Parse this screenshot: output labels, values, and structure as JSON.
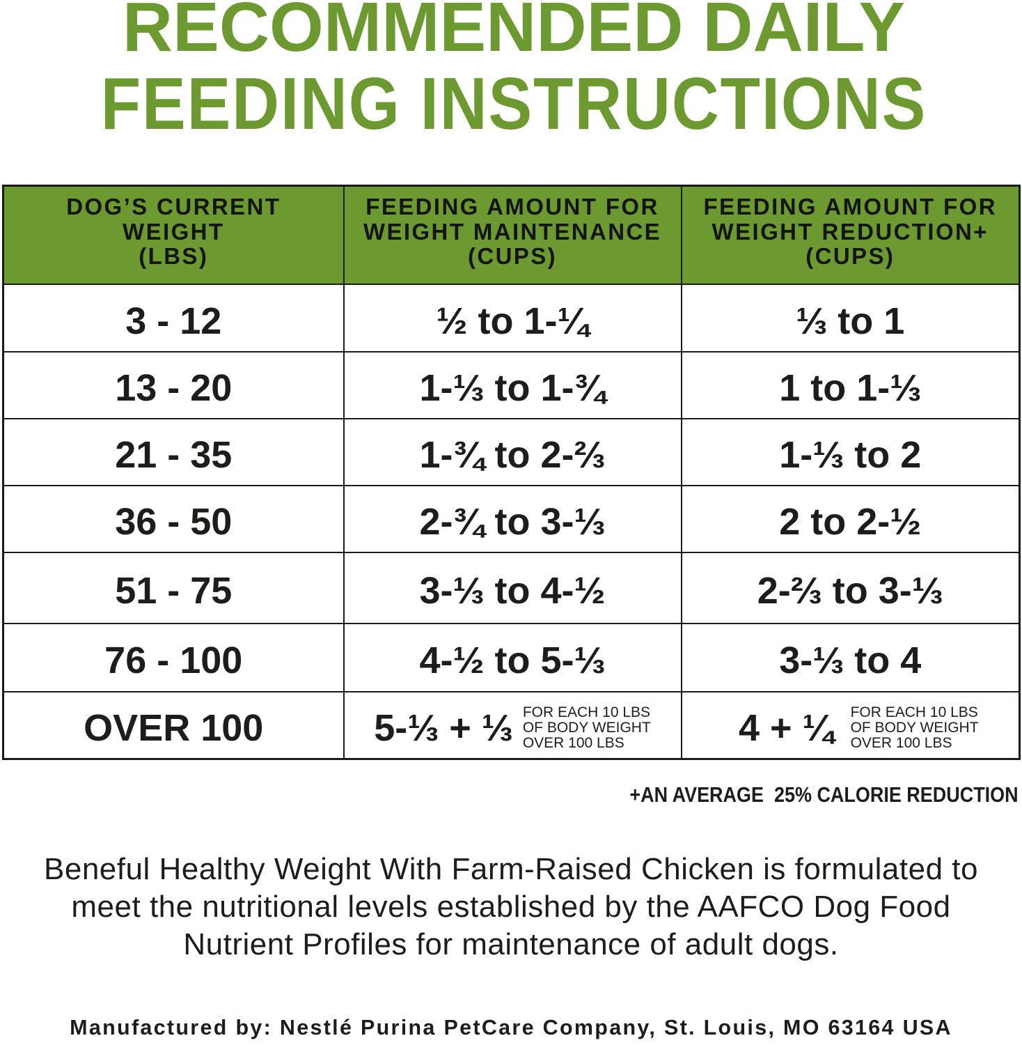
{
  "title": {
    "lines": [
      "RECOMMENDED DAILY",
      "FEEDING INSTRUCTIONS"
    ]
  },
  "colors": {
    "green": "#6c9a31",
    "text": "#1d1d1b",
    "border": "#1a1a1a"
  },
  "table": {
    "headers": [
      "DOG’S CURRENT\nWEIGHT\n(LBS)",
      "FEEDING AMOUNT FOR\nWEIGHT MAINTENANCE\n(CUPS)",
      "FEEDING AMOUNT FOR\nWEIGHT REDUCTION+\n(CUPS)"
    ],
    "rows": [
      {
        "weight": "3 - 12",
        "maintenance": "½ to 1-¼",
        "reduction": "⅓ to 1"
      },
      {
        "weight": "13 - 20",
        "maintenance": "1-⅓ to 1-¾",
        "reduction": "1 to 1-⅓"
      },
      {
        "weight": "21 - 35",
        "maintenance": "1-¾ to 2-⅔",
        "reduction": "1-⅓ to 2"
      },
      {
        "weight": "36 - 50",
        "maintenance": "2-¾ to 3-⅓",
        "reduction": "2 to 2-½"
      },
      {
        "weight": "51 - 75",
        "maintenance": "3-⅓ to 4-½",
        "reduction": "2-⅔ to 3-⅓"
      },
      {
        "weight": "76 - 100",
        "maintenance": "4-½ to 5-⅓",
        "reduction": "3-⅓ to 4"
      },
      {
        "weight": "OVER 100",
        "maintenance": "5-⅓ + ⅓",
        "maintenance_note": "FOR EACH 10 LBS\nOF BODY WEIGHT\nOVER 100 LBS",
        "reduction": "4 + ¼",
        "reduction_note": "FOR EACH 10 LBS\nOF BODY WEIGHT\nOVER 100 LBS"
      }
    ]
  },
  "footnote": "+AN AVERAGE  25% CALORIE REDUCTION",
  "paragraph": "Beneful Healthy Weight With Farm-Raised Chicken is formulated to\nmeet the nutritional levels established by the AAFCO Dog Food\nNutrient Profiles for maintenance of adult dogs.",
  "manufacturer": "Manufactured by: Nestlé Purina PetCare Company, St. Louis, MO 63164 USA"
}
